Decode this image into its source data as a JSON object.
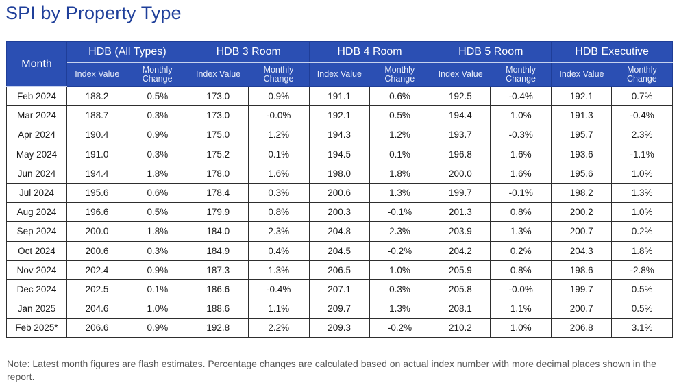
{
  "title": "SPI by Property Type",
  "header": {
    "month": "Month",
    "groups": [
      "HDB (All Types)",
      "HDB 3 Room",
      "HDB 4 Room",
      "HDB 5 Room",
      "HDB Executive"
    ],
    "sub_value": "Index Value",
    "sub_change": "Monthly Change"
  },
  "rows": [
    [
      "Feb 2024",
      "188.2",
      "0.5%",
      "173.0",
      "0.9%",
      "191.1",
      "0.6%",
      "192.5",
      "-0.4%",
      "192.1",
      "0.7%"
    ],
    [
      "Mar 2024",
      "188.7",
      "0.3%",
      "173.0",
      "-0.0%",
      "192.1",
      "0.5%",
      "194.4",
      "1.0%",
      "191.3",
      "-0.4%"
    ],
    [
      "Apr 2024",
      "190.4",
      "0.9%",
      "175.0",
      "1.2%",
      "194.3",
      "1.2%",
      "193.7",
      "-0.3%",
      "195.7",
      "2.3%"
    ],
    [
      "May 2024",
      "191.0",
      "0.3%",
      "175.2",
      "0.1%",
      "194.5",
      "0.1%",
      "196.8",
      "1.6%",
      "193.6",
      "-1.1%"
    ],
    [
      "Jun 2024",
      "194.4",
      "1.8%",
      "178.0",
      "1.6%",
      "198.0",
      "1.8%",
      "200.0",
      "1.6%",
      "195.6",
      "1.0%"
    ],
    [
      "Jul 2024",
      "195.6",
      "0.6%",
      "178.4",
      "0.3%",
      "200.6",
      "1.3%",
      "199.7",
      "-0.1%",
      "198.2",
      "1.3%"
    ],
    [
      "Aug 2024",
      "196.6",
      "0.5%",
      "179.9",
      "0.8%",
      "200.3",
      "-0.1%",
      "201.3",
      "0.8%",
      "200.2",
      "1.0%"
    ],
    [
      "Sep 2024",
      "200.0",
      "1.8%",
      "184.0",
      "2.3%",
      "204.8",
      "2.3%",
      "203.9",
      "1.3%",
      "200.7",
      "0.2%"
    ],
    [
      "Oct 2024",
      "200.6",
      "0.3%",
      "184.9",
      "0.4%",
      "204.5",
      "-0.2%",
      "204.2",
      "0.2%",
      "204.3",
      "1.8%"
    ],
    [
      "Nov 2024",
      "202.4",
      "0.9%",
      "187.3",
      "1.3%",
      "206.5",
      "1.0%",
      "205.9",
      "0.8%",
      "198.6",
      "-2.8%"
    ],
    [
      "Dec 2024",
      "202.5",
      "0.1%",
      "186.6",
      "-0.4%",
      "207.1",
      "0.3%",
      "205.8",
      "-0.0%",
      "199.7",
      "0.5%"
    ],
    [
      "Jan 2025",
      "204.6",
      "1.0%",
      "188.6",
      "1.1%",
      "209.7",
      "1.3%",
      "208.1",
      "1.1%",
      "200.7",
      "0.5%"
    ],
    [
      "Feb 2025*",
      "206.6",
      "0.9%",
      "192.8",
      "2.2%",
      "209.3",
      "-0.2%",
      "210.2",
      "1.0%",
      "206.8",
      "3.1%"
    ]
  ],
  "note": "Note: Latest month figures are flash estimates. Percentage changes are calculated based on actual index number with more decimal places shown in the report."
}
